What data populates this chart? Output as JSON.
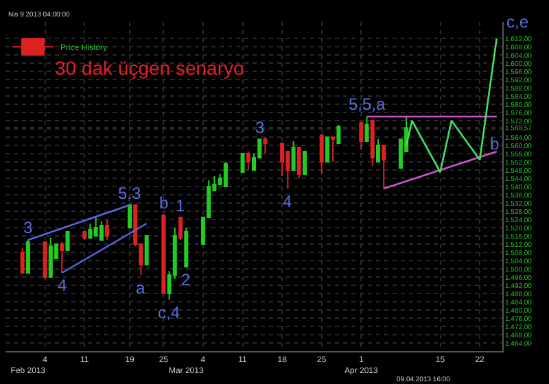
{
  "chart_data": {
    "type": "candlestick",
    "title": "30 dak üçgen senaryo",
    "subtitle": "Nis 9 2013 04:00:00",
    "legend": "top left",
    "grid": true,
    "ylim": [
      1460,
      1620
    ],
    "yticks": [
      {
        "value": 1464,
        "label": "1.464,00"
      },
      {
        "value": 1468,
        "label": "1.468,00"
      },
      {
        "value": 1472,
        "label": "1.472,00"
      },
      {
        "value": 1476,
        "label": "1.476,00"
      },
      {
        "value": 1480,
        "label": "1.480,00"
      },
      {
        "value": 1484,
        "label": "1.484,00"
      },
      {
        "value": 1488,
        "label": "1.488,00"
      },
      {
        "value": 1492,
        "label": "1.492,00"
      },
      {
        "value": 1496,
        "label": "1.496,00"
      },
      {
        "value": 1500,
        "label": "1.500,00"
      },
      {
        "value": 1504,
        "label": "1.504,00"
      },
      {
        "value": 1508,
        "label": "1.508,00"
      },
      {
        "value": 1512,
        "label": "1.512,00"
      },
      {
        "value": 1516,
        "label": "1.516,00"
      },
      {
        "value": 1520,
        "label": "1.520,00"
      },
      {
        "value": 1524,
        "label": "1.524,00"
      },
      {
        "value": 1528,
        "label": "1.528,00"
      },
      {
        "value": 1532,
        "label": "1.532,00"
      },
      {
        "value": 1536,
        "label": "1.536,00"
      },
      {
        "value": 1540,
        "label": "1.540,00"
      },
      {
        "value": 1544,
        "label": "1.544,00"
      },
      {
        "value": 1548,
        "label": "1.548,00"
      },
      {
        "value": 1552,
        "label": "1.552,00"
      },
      {
        "value": 1556,
        "label": "1.556,00"
      },
      {
        "value": 1560,
        "label": "1.560,00"
      },
      {
        "value": 1564,
        "label": "1.564,00"
      },
      {
        "value": 1568,
        "label": null
      },
      {
        "value": 1568.57,
        "label": "1.568,57"
      },
      {
        "value": 1572,
        "label": "1.572,00"
      },
      {
        "value": 1576,
        "label": "1.576,00"
      },
      {
        "value": 1580,
        "label": "1.580,00"
      },
      {
        "value": 1584,
        "label": "1.584,00"
      },
      {
        "value": 1588,
        "label": "1.588,00"
      },
      {
        "value": 1592,
        "label": "1.592,00"
      },
      {
        "value": 1596,
        "label": "1.596,00"
      },
      {
        "value": 1600,
        "label": "1.600,00"
      },
      {
        "value": 1604,
        "label": "1.604,00"
      },
      {
        "value": 1608,
        "label": "1.608,00"
      },
      {
        "value": 1612,
        "label": "1.612,00"
      }
    ],
    "xlim": [
      "2013-01-28",
      "2013-04-26"
    ],
    "xticks": [
      {
        "value": "2013-02-04",
        "label": "4"
      },
      {
        "value": "2013-02-11",
        "label": "11"
      },
      {
        "value": "2013-02-19",
        "label": "19"
      },
      {
        "value": "2013-02-25",
        "label": "25"
      },
      {
        "value": "2013-03-04",
        "label": "4"
      },
      {
        "value": "2013-03-11",
        "label": "11"
      },
      {
        "value": "2013-03-18",
        "label": "18"
      },
      {
        "value": "2013-03-25",
        "label": "25"
      },
      {
        "value": "2013-04-01",
        "label": "1"
      },
      {
        "value": "2013-04-15",
        "label": "15"
      },
      {
        "value": "2013-04-22",
        "label": "22"
      }
    ],
    "x2lim": [
      "2013-01-28",
      "2013-04-26"
    ],
    "x2ticks": [
      {
        "value": "2013-02-01",
        "label": "Feb 2013"
      },
      {
        "value": "2013-03-01",
        "label": "Mar 2013"
      },
      {
        "value": "2013-04-01",
        "label": "Apr 2013"
      }
    ],
    "series": [
      {
        "name": "Price History",
        "colors": [
          "#dd2222",
          "#22cc22",
          "#dd2222",
          "#22cc22",
          "#22cc22",
          "#dd2222",
          "#22cc22",
          "#dd2222",
          "#22cc22",
          "#22cc22",
          "#22cc22",
          "#dd2222",
          "#22cc22",
          "#dd2222",
          "#dd2222",
          "#22cc22",
          "#dd2222",
          "#22cc22",
          "#22cc22",
          "#dd2222",
          "#22cc22",
          "#22cc22",
          "#22cc22",
          "#22cc22",
          "#22cc22",
          "#22cc22",
          "#22cc22",
          "#dd2222",
          "#22cc22",
          "#22cc22",
          "#dd2222",
          "#dd2222",
          "#dd2222",
          "#22cc22",
          "#dd2222",
          "#22cc22",
          "#dd2222",
          "#22cc22",
          "#dd2222",
          "#22cc22",
          "#dd2222",
          "#22cc22",
          "#dd2222",
          "#22cc22",
          "#dd2222",
          "#22cc22",
          "#22cc22"
        ],
        "x": [
          "2013-01-31",
          "2013-02-01",
          "2013-02-04",
          "2013-02-05",
          "2013-02-06",
          "2013-02-07",
          "2013-02-08",
          "2013-02-11",
          "2013-02-12",
          "2013-02-13",
          "2013-02-14",
          "2013-02-15",
          "2013-02-19",
          "2013-02-20",
          "2013-02-21",
          "2013-02-22",
          "2013-02-25",
          "2013-02-26",
          "2013-02-27",
          "2013-02-28",
          "2013-03-01",
          "2013-03-04",
          "2013-03-05",
          "2013-03-06",
          "2013-03-07",
          "2013-03-08",
          "2013-03-11",
          "2013-03-12",
          "2013-03-13",
          "2013-03-14",
          "2013-03-15",
          "2013-03-18",
          "2013-03-19",
          "2013-03-20",
          "2013-03-21",
          "2013-03-22",
          "2013-03-25",
          "2013-03-26",
          "2013-03-27",
          "2013-03-28",
          "2013-04-01",
          "2013-04-02",
          "2013-04-03",
          "2013-04-04",
          "2013-04-05",
          "2013-04-08",
          "2013-04-09"
        ],
        "ohlc": [
          [
            1508,
            1510,
            1498,
            1498
          ],
          [
            1498,
            1514,
            1498,
            1513
          ],
          [
            1513,
            1513,
            1495,
            1496
          ],
          [
            1496,
            1515,
            1496,
            1511
          ],
          [
            1505,
            1512,
            1505,
            1512
          ],
          [
            1512,
            1513,
            1498,
            1509
          ],
          [
            1509,
            1518,
            1509,
            1518
          ],
          [
            1518,
            1518,
            1514,
            1515
          ],
          [
            1515,
            1522,
            1515,
            1519
          ],
          [
            1516,
            1525,
            1516,
            1520
          ],
          [
            1514,
            1523,
            1514,
            1521
          ],
          [
            1521,
            1524,
            1514,
            1516
          ],
          [
            1520,
            1531,
            1520,
            1531
          ],
          [
            1531,
            1531,
            1511,
            1512
          ],
          [
            1512,
            1512,
            1497,
            1502
          ],
          [
            1502,
            1516,
            1502,
            1516
          ],
          [
            1526,
            1526,
            1488,
            1488
          ],
          [
            1488,
            1499,
            1485,
            1497
          ],
          [
            1497,
            1520,
            1495,
            1516
          ],
          [
            1525,
            1525,
            1514,
            1515
          ],
          [
            1501,
            1520,
            1501,
            1518
          ],
          [
            1512,
            1525,
            1512,
            1525
          ],
          [
            1525,
            1543,
            1525,
            1540
          ],
          [
            1538,
            1545,
            1538,
            1541
          ],
          [
            1541,
            1546,
            1541,
            1544
          ],
          [
            1540,
            1552,
            1540,
            1551
          ],
          [
            1547,
            1556,
            1547,
            1556
          ],
          [
            1556,
            1557,
            1548,
            1552
          ],
          [
            1548,
            1556,
            1548,
            1554
          ],
          [
            1554,
            1563,
            1554,
            1563
          ],
          [
            1563,
            1564,
            1556,
            1561
          ],
          [
            1561,
            1561,
            1545,
            1552
          ],
          [
            1557,
            1557,
            1539,
            1548
          ],
          [
            1548,
            1562,
            1548,
            1559
          ],
          [
            1559,
            1559,
            1544,
            1546
          ],
          [
            1546,
            1557,
            1546,
            1557
          ],
          [
            1565,
            1565,
            1546,
            1552
          ],
          [
            1552,
            1564,
            1552,
            1564
          ],
          [
            1564,
            1564,
            1552,
            1563
          ],
          [
            1561,
            1570,
            1561,
            1569
          ],
          [
            1571,
            1571,
            1558,
            1562
          ],
          [
            1562,
            1574,
            1562,
            1570
          ],
          [
            1572,
            1572,
            1550,
            1554
          ],
          [
            1552,
            1563,
            1552,
            1560
          ],
          [
            1560,
            1560,
            1539,
            1553
          ],
          [
            1549,
            1563,
            1549,
            1563
          ],
          [
            1557,
            1574,
            1557,
            1568.57
          ]
        ]
      },
      {
        "type": "line",
        "color": "#5566dd",
        "x": [
          "2013-02-01",
          "2013-02-19"
        ],
        "values": [
          1514,
          1531
        ]
      },
      {
        "type": "line",
        "color": "#5566dd",
        "x": [
          "2013-02-07",
          "2013-02-22"
        ],
        "values": [
          1498,
          1522
        ]
      },
      {
        "type": "line",
        "color": "#cc55cc",
        "x": [
          "2013-04-02",
          "2013-04-25"
        ],
        "values": [
          1574,
          1574
        ]
      },
      {
        "type": "line",
        "color": "#cc55cc",
        "x": [
          "2013-04-05",
          "2013-04-25"
        ],
        "values": [
          1539,
          1557
        ]
      },
      {
        "type": "line",
        "color": "#44dd66",
        "x": [
          "2013-04-09",
          "2013-04-10",
          "2013-04-15",
          "2013-04-17",
          "2013-04-22",
          "2013-04-25"
        ],
        "values": [
          1560,
          1572,
          1547,
          1572,
          1553,
          1612
        ]
      }
    ],
    "annotations": [
      {
        "text": "3",
        "x": "2013-02-01",
        "y": 1514
      },
      {
        "text": "4",
        "x": "2013-02-07",
        "y": 1498
      },
      {
        "text": "5,3",
        "x": "2013-02-19",
        "y": 1531
      },
      {
        "text": "a",
        "x": "2013-02-21",
        "y": 1497
      },
      {
        "text": "b",
        "x": "2013-02-25",
        "y": 1526
      },
      {
        "text": "c,4",
        "x": "2013-02-26",
        "y": 1485
      },
      {
        "text": "1",
        "x": "2013-02-28",
        "y": 1525
      },
      {
        "text": "2",
        "x": "2013-03-01",
        "y": 1501
      },
      {
        "text": "3",
        "x": "2013-03-14",
        "y": 1563
      },
      {
        "text": "4",
        "x": "2013-03-19",
        "y": 1539
      },
      {
        "text": "5,5,a",
        "x": "2013-04-02",
        "y": 1574
      },
      {
        "text": "b",
        "x": "2013-04-22",
        "y": 1553
      },
      {
        "text": "c,e",
        "x": "2013-04-25",
        "y": 1612
      },
      "09.04.2013 16:00"
    ]
  }
}
